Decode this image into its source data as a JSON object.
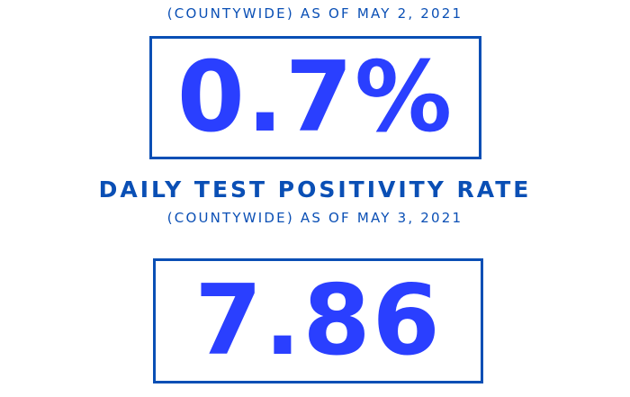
{
  "section1": {
    "subtitle": "(COUNTYWIDE) AS OF MAY 2, 2021",
    "value": "0.7%"
  },
  "section2": {
    "title": "DAILY TEST POSITIVITY RATE",
    "subtitle": "(COUNTYWIDE) AS OF MAY 3, 2021",
    "value": "7.86"
  },
  "colors": {
    "heading": "#0a4fb5",
    "value": "#2a3fff",
    "border": "#0a4fb5"
  }
}
